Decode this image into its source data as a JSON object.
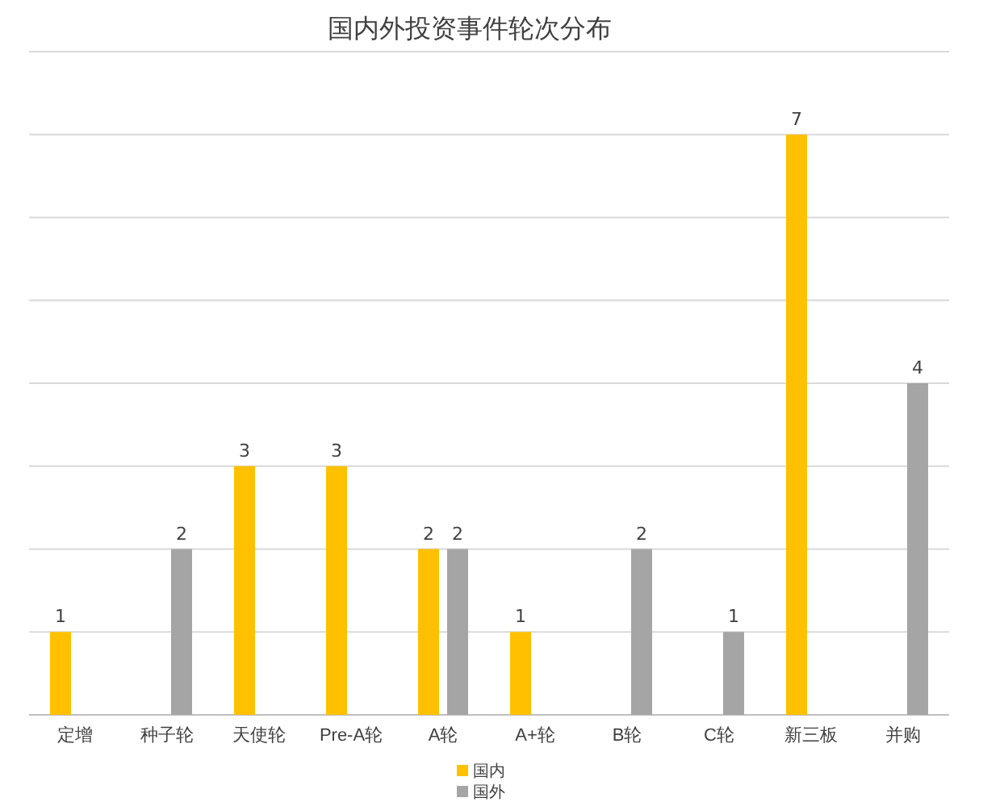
{
  "chart_data": {
    "type": "bar",
    "title": "国内外投资事件轮次分布",
    "categories": [
      "定增",
      "种子轮",
      "天使轮",
      "Pre-A轮",
      "A轮",
      "A+轮",
      "B轮",
      "C轮",
      "新三板",
      "并购"
    ],
    "series": [
      {
        "name": "国内",
        "color": "#ffc000",
        "values": [
          1,
          null,
          3,
          3,
          2,
          1,
          null,
          null,
          7,
          null
        ]
      },
      {
        "name": "国外",
        "color": "#a5a5a5",
        "values": [
          null,
          2,
          null,
          null,
          2,
          null,
          2,
          1,
          null,
          4
        ]
      }
    ],
    "ylim": [
      0,
      8
    ],
    "yticks": [
      {
        "value": 0,
        "label": null
      },
      {
        "value": 1,
        "label": null
      },
      {
        "value": 2,
        "label": null
      },
      {
        "value": 3,
        "label": null
      },
      {
        "value": 4,
        "label": null
      },
      {
        "value": 5,
        "label": null
      },
      {
        "value": 6,
        "label": null
      },
      {
        "value": 7,
        "label": null
      },
      {
        "value": 8,
        "label": null
      }
    ],
    "tick_labels": "x",
    "grid": "y",
    "data_labels": true,
    "legend": "bottom"
  }
}
